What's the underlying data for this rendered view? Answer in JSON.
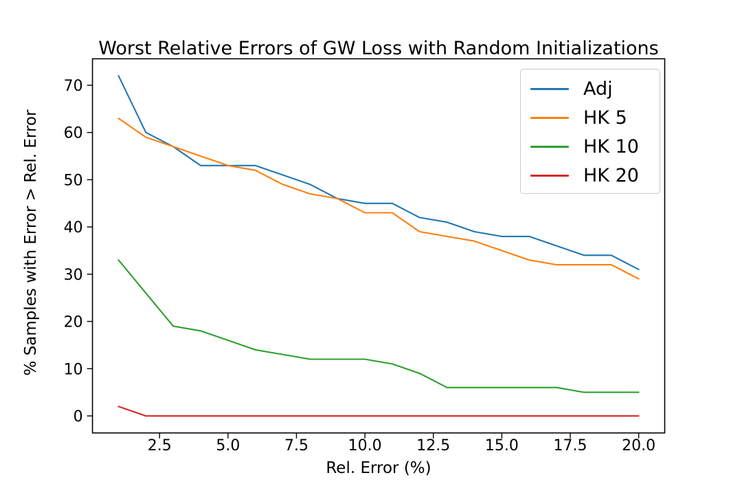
{
  "chart_data": {
    "type": "line",
    "title": "Worst Relative Errors of GW Loss with Random Initializations",
    "xlabel": "Rel. Error (%)",
    "ylabel": "% Samples with Error > Rel. Error",
    "grid": false,
    "legend_position": "upper right",
    "xlim": [
      0.05,
      20.95
    ],
    "ylim": [
      -3.6,
      75.6
    ],
    "xticks": {
      "values": [
        2.5,
        5,
        7.5,
        10,
        12.5,
        15,
        17.5,
        20
      ],
      "labels": [
        "2.5",
        "5.0",
        "7.5",
        "10.0",
        "12.5",
        "15.0",
        "17.5",
        "20.0"
      ]
    },
    "yticks": {
      "values": [
        0,
        10,
        20,
        30,
        40,
        50,
        60,
        70
      ],
      "labels": [
        "0",
        "10",
        "20",
        "30",
        "40",
        "50",
        "60",
        "70"
      ]
    },
    "x": [
      1,
      2,
      3,
      4,
      5,
      6,
      7,
      8,
      9,
      10,
      11,
      12,
      13,
      14,
      15,
      16,
      17,
      18,
      19,
      20
    ],
    "series": [
      {
        "name": "Adj",
        "color": "#1f77b4",
        "values": [
          72,
          60,
          57,
          53,
          53,
          53,
          51,
          49,
          46,
          45,
          45,
          42,
          41,
          39,
          38,
          38,
          36,
          34,
          34,
          31
        ]
      },
      {
        "name": "HK 5",
        "color": "#ff7f0e",
        "values": [
          63,
          59,
          57,
          55,
          53,
          52,
          49,
          47,
          46,
          43,
          43,
          39,
          38,
          37,
          35,
          33,
          32,
          32,
          32,
          29
        ]
      },
      {
        "name": "HK 10",
        "color": "#2ca02c",
        "values": [
          33,
          26,
          19,
          18,
          16,
          14,
          13,
          12,
          12,
          12,
          11,
          9,
          6,
          6,
          6,
          6,
          6,
          5,
          5,
          5
        ]
      },
      {
        "name": "HK 20",
        "color": "#d62728",
        "values": [
          2,
          0,
          0,
          0,
          0,
          0,
          0,
          0,
          0,
          0,
          0,
          0,
          0,
          0,
          0,
          0,
          0,
          0,
          0,
          0
        ]
      }
    ]
  }
}
